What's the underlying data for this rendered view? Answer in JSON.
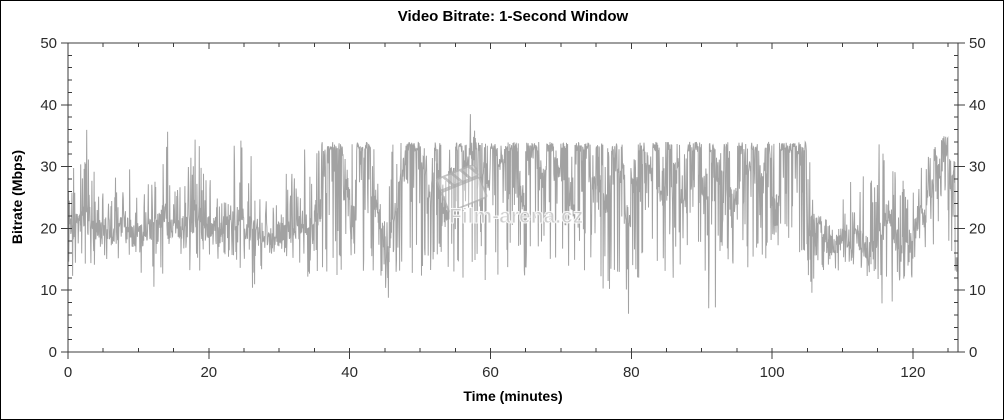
{
  "title": "Video Bitrate: 1-Second Window",
  "axes": {
    "y_left": {
      "label": "Bitrate (Mbps)",
      "ticks": [
        0,
        10,
        20,
        30,
        40,
        50
      ],
      "minor_step": 2,
      "range": [
        0,
        50
      ]
    },
    "y_right": {
      "ticks": [
        0,
        10,
        20,
        30,
        40,
        50
      ],
      "minor_step": 2,
      "range": [
        0,
        50
      ]
    },
    "x": {
      "label": "Time (minutes)",
      "ticks": [
        0,
        20,
        40,
        60,
        80,
        100,
        120
      ],
      "minor_step": 5,
      "major_step": 20,
      "range": [
        0,
        126.4
      ]
    }
  },
  "watermark": {
    "text": "Film-arena.cz",
    "icon": "clapperboard-icon"
  },
  "colors": {
    "line": "#8d8d8d",
    "axis": "#3c3c3c",
    "tick_label": "#2b2b2b",
    "title": "#000000",
    "background": "#ffffff",
    "watermark": "#b3b3b3"
  },
  "chart_data": {
    "type": "line",
    "title": "Video Bitrate: 1-Second Window",
    "xlabel": "Time (minutes)",
    "ylabel": "Bitrate (Mbps)",
    "unit": "Mbps",
    "xlim": [
      0,
      126.4
    ],
    "ylim": [
      0,
      50
    ],
    "x_ticks": [
      0,
      20,
      40,
      60,
      80,
      100,
      120
    ],
    "y_ticks": [
      0,
      10,
      20,
      30,
      40,
      50
    ],
    "grid": false,
    "legend": "none",
    "series_name": "bitrate-1s-window",
    "summary": {
      "baseline_mbps": 20,
      "plateau_cap_mbps": 34,
      "peak_mbps": 41,
      "peak_time_min": 57,
      "min_mbps": 5,
      "min_time_min": 91,
      "end_value_mbps": 14
    },
    "sampling_note": "per-minute envelope [min,max,typical] in Mbps read from plot; index = minute",
    "envelope": [
      [
        10,
        30,
        20
      ],
      [
        13,
        36,
        21
      ],
      [
        14,
        36,
        22
      ],
      [
        14,
        31,
        20
      ],
      [
        16,
        28,
        20
      ],
      [
        15,
        27,
        20
      ],
      [
        14,
        29,
        19
      ],
      [
        15,
        26,
        20
      ],
      [
        14,
        30,
        20
      ],
      [
        13,
        28,
        19
      ],
      [
        12,
        26,
        19
      ],
      [
        14,
        30,
        20
      ],
      [
        10,
        35,
        21
      ],
      [
        10,
        36,
        22
      ],
      [
        14,
        36,
        20
      ],
      [
        15,
        28,
        20
      ],
      [
        14,
        27,
        20
      ],
      [
        12,
        35,
        21
      ],
      [
        13,
        35,
        22
      ],
      [
        14,
        30,
        20
      ],
      [
        14,
        28,
        20
      ],
      [
        15,
        26,
        20
      ],
      [
        15,
        25,
        20
      ],
      [
        12,
        35,
        21
      ],
      [
        13,
        35,
        22
      ],
      [
        14,
        28,
        20
      ],
      [
        10,
        33,
        20
      ],
      [
        11,
        30,
        19
      ],
      [
        15,
        26,
        19
      ],
      [
        16,
        24,
        19
      ],
      [
        16,
        24,
        19
      ],
      [
        13,
        30,
        20
      ],
      [
        14,
        31,
        20
      ],
      [
        15,
        33,
        21
      ],
      [
        11,
        30,
        19
      ],
      [
        13,
        33,
        22
      ],
      [
        12,
        34,
        31
      ],
      [
        14,
        34,
        33
      ],
      [
        12,
        34,
        32
      ],
      [
        14,
        34,
        26
      ],
      [
        15,
        34,
        22
      ],
      [
        13,
        34,
        33
      ],
      [
        14,
        34,
        33
      ],
      [
        12,
        34,
        24
      ],
      [
        12,
        34,
        20
      ],
      [
        8,
        34,
        18
      ],
      [
        12,
        34,
        22
      ],
      [
        13,
        34,
        28
      ],
      [
        12,
        34,
        32
      ],
      [
        14,
        34,
        33
      ],
      [
        12,
        34,
        30
      ],
      [
        12,
        34,
        24
      ],
      [
        13,
        34,
        33
      ],
      [
        11,
        34,
        22
      ],
      [
        12,
        34,
        28
      ],
      [
        13,
        34,
        33
      ],
      [
        11,
        34,
        30
      ],
      [
        14,
        41,
        33
      ],
      [
        13,
        34,
        33
      ],
      [
        11,
        34,
        28
      ],
      [
        12,
        34,
        33
      ],
      [
        9,
        34,
        30
      ],
      [
        12,
        34,
        33
      ],
      [
        13,
        34,
        33
      ],
      [
        11,
        34,
        25
      ],
      [
        12,
        34,
        33
      ],
      [
        13,
        34,
        33
      ],
      [
        10,
        34,
        28
      ],
      [
        12,
        34,
        33
      ],
      [
        11,
        34,
        30
      ],
      [
        13,
        34,
        33
      ],
      [
        11,
        34,
        24
      ],
      [
        12,
        34,
        33
      ],
      [
        13,
        34,
        33
      ],
      [
        11,
        34,
        27
      ],
      [
        12,
        34,
        33
      ],
      [
        10,
        34,
        24
      ],
      [
        11,
        34,
        32
      ],
      [
        12,
        34,
        29
      ],
      [
        6,
        34,
        22
      ],
      [
        9,
        34,
        27
      ],
      [
        12,
        34,
        33
      ],
      [
        11,
        34,
        29
      ],
      [
        12,
        34,
        33
      ],
      [
        13,
        34,
        25
      ],
      [
        11,
        34,
        32
      ],
      [
        12,
        34,
        29
      ],
      [
        9,
        34,
        24
      ],
      [
        12,
        34,
        33
      ],
      [
        13,
        34,
        33
      ],
      [
        11,
        34,
        27
      ],
      [
        5,
        34,
        32
      ],
      [
        9,
        34,
        29
      ],
      [
        12,
        34,
        33
      ],
      [
        13,
        34,
        25
      ],
      [
        11,
        34,
        33
      ],
      [
        12,
        34,
        29
      ],
      [
        13,
        34,
        33
      ],
      [
        11,
        34,
        27
      ],
      [
        14,
        34,
        33
      ],
      [
        17,
        34,
        24
      ],
      [
        19,
        34,
        33
      ],
      [
        18,
        34,
        33
      ],
      [
        15,
        34,
        33
      ],
      [
        12,
        34,
        33
      ],
      [
        9,
        34,
        20
      ],
      [
        13,
        22,
        20
      ],
      [
        12,
        22,
        18
      ],
      [
        13,
        21,
        17
      ],
      [
        13,
        22,
        18
      ],
      [
        14,
        28,
        18
      ],
      [
        14,
        30,
        18
      ],
      [
        13,
        31,
        18
      ],
      [
        12,
        29,
        17
      ],
      [
        13,
        31,
        18
      ],
      [
        7,
        34,
        20
      ],
      [
        12,
        34,
        22
      ],
      [
        6,
        30,
        18
      ],
      [
        11,
        28,
        17
      ],
      [
        12,
        26,
        18
      ],
      [
        13,
        28,
        20
      ],
      [
        14,
        30,
        22
      ],
      [
        17,
        32,
        26
      ],
      [
        21,
        34,
        30
      ],
      [
        25,
        35,
        33
      ],
      [
        14,
        34,
        28
      ],
      [
        10,
        20,
        14
      ]
    ]
  }
}
